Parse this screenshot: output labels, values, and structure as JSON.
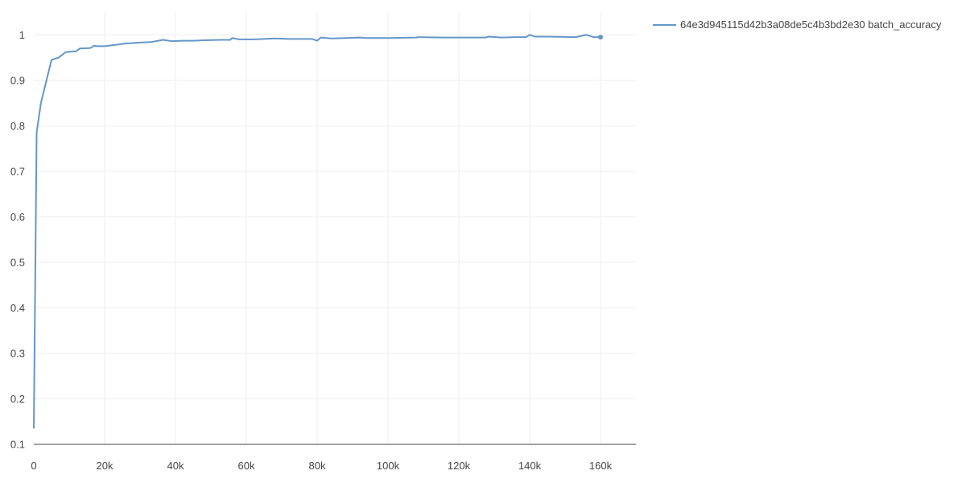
{
  "chart_data": {
    "type": "line",
    "title": "",
    "xlabel": "",
    "ylabel": "",
    "xlim": [
      0,
      170000
    ],
    "ylim": [
      0.1,
      1.05
    ],
    "x_ticks": [
      0,
      20000,
      40000,
      60000,
      80000,
      100000,
      120000,
      140000,
      160000
    ],
    "x_tick_labels": [
      "0",
      "20k",
      "40k",
      "60k",
      "80k",
      "100k",
      "120k",
      "140k",
      "160k"
    ],
    "y_ticks": [
      0.1,
      0.2,
      0.3,
      0.4,
      0.5,
      0.6,
      0.7,
      0.8,
      0.9,
      1
    ],
    "y_tick_labels": [
      "0.1",
      "0.2",
      "0.3",
      "0.4",
      "0.5",
      "0.6",
      "0.7",
      "0.8",
      "0.9",
      "1"
    ],
    "grid": true,
    "legend_position": "top-right",
    "series": [
      {
        "name": "64e3d945115d42b3a08de5c4b3bd2e30 batch_accuracy",
        "color": "#6497c9",
        "end_marker": true,
        "points": [
          [
            0,
            0.135
          ],
          [
            800,
            0.785
          ],
          [
            2000,
            0.85
          ],
          [
            5000,
            0.945
          ],
          [
            7000,
            0.95
          ],
          [
            9000,
            0.962
          ],
          [
            12000,
            0.964
          ],
          [
            13000,
            0.97
          ],
          [
            16000,
            0.971
          ],
          [
            17000,
            0.976
          ],
          [
            18000,
            0.975
          ],
          [
            20000,
            0.975
          ],
          [
            23000,
            0.978
          ],
          [
            26000,
            0.981
          ],
          [
            28000,
            0.982
          ],
          [
            30000,
            0.983
          ],
          [
            33000,
            0.984
          ],
          [
            36500,
            0.989
          ],
          [
            39000,
            0.986
          ],
          [
            42000,
            0.987
          ],
          [
            45000,
            0.987
          ],
          [
            48000,
            0.988
          ],
          [
            53000,
            0.989
          ],
          [
            55500,
            0.989
          ],
          [
            56000,
            0.993
          ],
          [
            58000,
            0.99
          ],
          [
            62000,
            0.99
          ],
          [
            65000,
            0.991
          ],
          [
            68000,
            0.992
          ],
          [
            72000,
            0.991
          ],
          [
            76000,
            0.991
          ],
          [
            78500,
            0.991
          ],
          [
            80000,
            0.987
          ],
          [
            81000,
            0.994
          ],
          [
            84000,
            0.992
          ],
          [
            88000,
            0.993
          ],
          [
            92000,
            0.994
          ],
          [
            94000,
            0.993
          ],
          [
            100000,
            0.993
          ],
          [
            108000,
            0.994
          ],
          [
            108500,
            0.995
          ],
          [
            116000,
            0.994
          ],
          [
            120000,
            0.994
          ],
          [
            127500,
            0.994
          ],
          [
            128500,
            0.996
          ],
          [
            132000,
            0.994
          ],
          [
            136000,
            0.995
          ],
          [
            139000,
            0.995
          ],
          [
            140000,
            1.0
          ],
          [
            141500,
            0.996
          ],
          [
            145000,
            0.996
          ],
          [
            153000,
            0.995
          ],
          [
            156000,
            1.0
          ],
          [
            158000,
            0.995
          ],
          [
            160000,
            0.995
          ]
        ]
      }
    ]
  }
}
